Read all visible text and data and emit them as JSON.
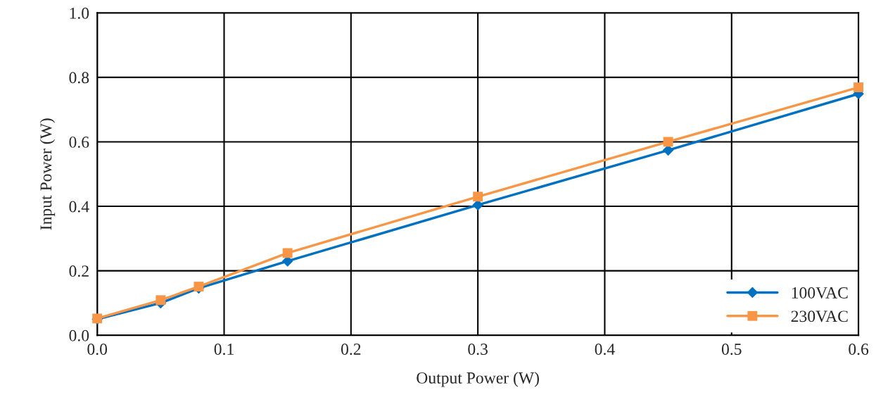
{
  "chart_data": {
    "type": "line",
    "xlabel": "Output Power (W)",
    "ylabel": "Input Power (W)",
    "x": [
      0,
      0.05,
      0.08,
      0.15,
      0.3,
      0.45,
      0.6
    ],
    "series": [
      {
        "name": "100VAC",
        "color": "#0070c0",
        "marker": "diamond",
        "values": [
          0.05,
          0.1,
          0.146,
          0.23,
          0.404,
          0.574,
          0.749
        ]
      },
      {
        "name": "230VAC",
        "color": "#f79646",
        "marker": "square",
        "values": [
          0.052,
          0.109,
          0.151,
          0.255,
          0.43,
          0.6,
          0.769
        ]
      }
    ],
    "xlim": [
      0,
      0.6
    ],
    "xticks": [
      {
        "value": 0,
        "label": "0.0"
      },
      0.1,
      0.2,
      0.3,
      0.4,
      0.5,
      0.6
    ],
    "ylim": [
      0,
      1.0
    ],
    "yticks": [
      {
        "value": 0,
        "label": "0.0"
      },
      0.2,
      0.4,
      0.6,
      0.8,
      {
        "value": 1,
        "label": "1.0"
      }
    ],
    "grid": true,
    "legend": "bottom right",
    "line_style": "solid"
  }
}
